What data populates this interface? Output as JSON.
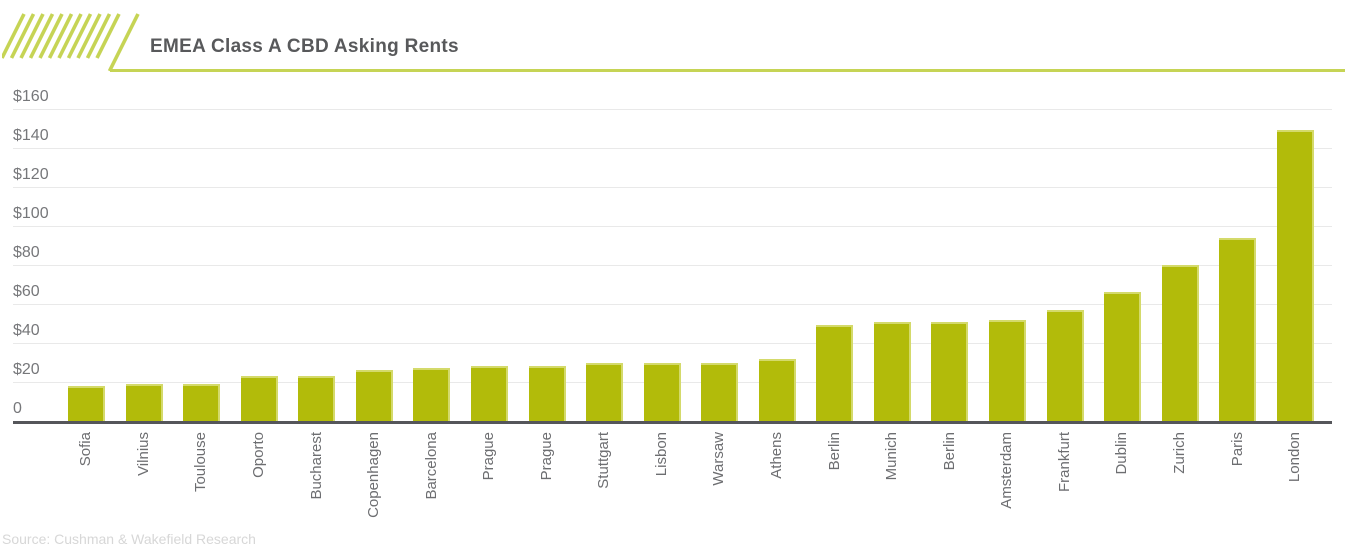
{
  "header": {
    "title": "EMEA Class A CBD Asking Rents"
  },
  "footer": {
    "source": "Source: Cushman & Wakefield Research"
  },
  "colors": {
    "bar": "#b2bb0a",
    "bar_highlight": "#d4da6b",
    "accent_green": "#c6d455",
    "gridline": "#e9e9e9",
    "axis_baseline": "#55565a",
    "title_text": "#58595b",
    "axis_text": "#6d6e71",
    "source_text": "#d7d7d7"
  },
  "chart_data": {
    "type": "bar",
    "title": "EMEA Class A CBD Asking Rents",
    "categories": [
      "Sofia",
      "Vilnius",
      "Toulouse",
      "Oporto",
      "Bucharest",
      "Copenhagen",
      "Barcelona",
      "Prague",
      "Prague",
      "Stuttgart",
      "Lisbon",
      "Warsaw",
      "Athens",
      "Berlin",
      "Munich",
      "Berlin",
      "Amsterdam",
      "Frankfurt",
      "Dublin",
      "Zurich",
      "Paris",
      "London"
    ],
    "values": [
      18,
      19,
      19,
      23,
      23,
      26,
      27,
      28,
      28,
      30,
      30,
      30,
      32,
      49,
      51,
      51,
      52,
      57,
      66,
      80,
      94,
      149
    ],
    "xlabel": "",
    "ylabel": "",
    "ylim": [
      0,
      160
    ],
    "ytick_values": [
      160,
      140,
      120,
      100,
      80,
      60,
      40,
      20,
      0
    ],
    "ytick_labels": [
      "$160",
      "$140",
      "$120",
      "$100",
      "$80",
      "$60",
      "$40",
      "$20",
      "0"
    ],
    "grid": true,
    "legend": false,
    "bar_color": "#b2bb0a",
    "source": "Source: Cushman & Wakefield Research"
  }
}
